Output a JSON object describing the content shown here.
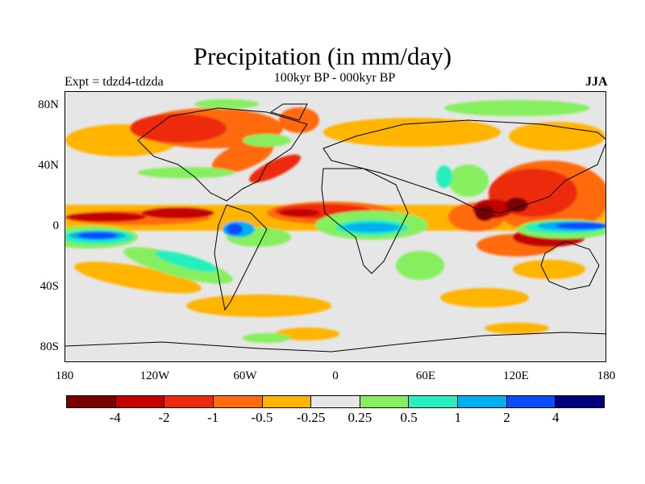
{
  "title": "Precipitation (in mm/day)",
  "subtitle": "100kyr BP - 000kyr BP",
  "left_label": "Expt = tdzd4-tdzda",
  "right_label": "JJA",
  "map": {
    "lat_ticks": [
      "80N",
      "40N",
      "0",
      "40S",
      "80S"
    ],
    "lon_ticks": [
      "180",
      "120W",
      "60W",
      "0",
      "60E",
      "120E",
      "180"
    ]
  },
  "colorbar": {
    "colors": [
      "#7a0000",
      "#c40000",
      "#ee2a0a",
      "#ff6a0e",
      "#ffb400",
      "#e6e6e6",
      "#86ef5e",
      "#27efbd",
      "#00b0f0",
      "#0a4cff",
      "#00007e"
    ],
    "labels": [
      "-4",
      "-2",
      "-1",
      "-0.5",
      "-0.25",
      "0.25",
      "0.5",
      "1",
      "2",
      "4"
    ]
  }
}
